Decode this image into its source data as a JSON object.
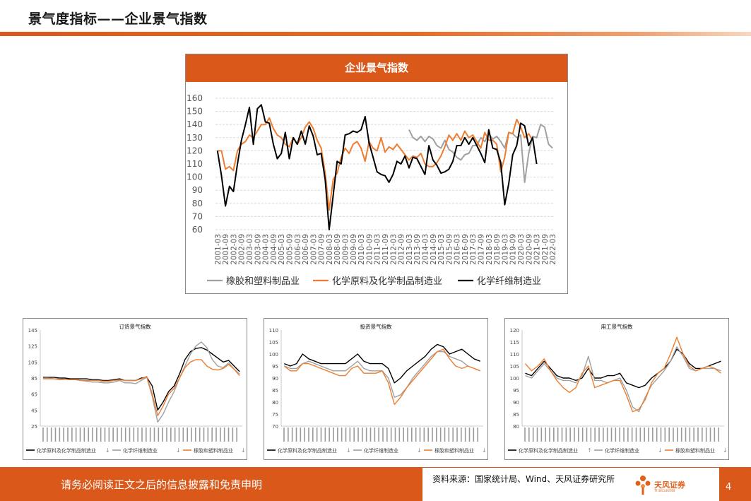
{
  "page": {
    "title": "景气度指标——企业景气指数",
    "footer": "请务必阅读正文之后的信息披露和免责申明",
    "source": "资料来源：国家统计局、Wind、天风证券研究所",
    "logo": "天风证券",
    "logo_sub": "TF SECURITIES",
    "page_number": "4",
    "accent_color": "#d9581a"
  },
  "chart_data": [
    {
      "id": "main",
      "type": "line",
      "title": "企业景气指数",
      "ylim": [
        60,
        160
      ],
      "yticks": [
        60,
        70,
        80,
        90,
        100,
        110,
        120,
        130,
        140,
        150,
        160
      ],
      "xticklabels": [
        "2001-03",
        "2001-09",
        "2002-03",
        "2002-09",
        "2003-03",
        "2003-09",
        "2004-03",
        "2004-09",
        "2005-03",
        "2005-09",
        "2006-03",
        "2006-09",
        "2007-03",
        "2007-09",
        "2008-03",
        "2008-09",
        "2009-03",
        "2009-09",
        "2010-03",
        "2010-09",
        "2011-03",
        "2011-09",
        "2012-03",
        "2012-09",
        "2013-03",
        "2013-09",
        "2014-03",
        "2014-09",
        "2015-03",
        "2015-09",
        "2016-03",
        "2016-09",
        "2017-03",
        "2017-09",
        "2018-03",
        "2018-09",
        "2019-03",
        "2019-09",
        "2020-03",
        "2020-09",
        "2021-03",
        "2021-09",
        "2022-03"
      ],
      "x_start": "2001-03",
      "x_freq": "quarterly",
      "grid": true,
      "legend": "bottom",
      "series": [
        {
          "name": "橡胶和塑料制品业",
          "color": "#a0a0a0",
          "start": "2013-03",
          "values": [
            136,
            130,
            128,
            131,
            127,
            131,
            129,
            124,
            122,
            128,
            121,
            119,
            115,
            113,
            117,
            118,
            124,
            124,
            130,
            127,
            133,
            129,
            131,
            127,
            122,
            134,
            133,
            130,
            132,
            96,
            118,
            131,
            130,
            140,
            138,
            125,
            122
          ]
        },
        {
          "name": "化学原料及化学制品制造业",
          "color": "#ed7d31",
          "start": "2001-03",
          "values": [
            120,
            120,
            106,
            108,
            105,
            120,
            125,
            127,
            132,
            130,
            135,
            140,
            140,
            145,
            137,
            132,
            130,
            125,
            123,
            130,
            125,
            130,
            138,
            142,
            137,
            128,
            122,
            103,
            75,
            98,
            103,
            115,
            122,
            118,
            125,
            127,
            122,
            112,
            127,
            122,
            120,
            130,
            119,
            123,
            121,
            125,
            121,
            117,
            113,
            116,
            115,
            118,
            110,
            108,
            108,
            111,
            116,
            123,
            132,
            128,
            133,
            128,
            135,
            130,
            132,
            127,
            122,
            134,
            128,
            128,
            125,
            104,
            115,
            134,
            133,
            144,
            138,
            130,
            133,
            128
          ]
        },
        {
          "name": "化学纤维制造业",
          "color": "#000000",
          "start": "2001-03",
          "values": [
            120,
            101,
            78,
            93,
            89,
            110,
            128,
            140,
            153,
            125,
            152,
            155,
            142,
            141,
            125,
            114,
            118,
            134,
            114,
            130,
            125,
            135,
            125,
            139,
            131,
            117,
            118,
            98,
            60,
            86,
            112,
            110,
            132,
            133,
            135,
            134,
            136,
            146,
            126,
            115,
            104,
            102,
            101,
            96,
            102,
            112,
            110,
            116,
            107,
            115,
            114,
            108,
            102,
            124,
            113,
            109,
            103,
            104,
            106,
            112,
            124,
            124,
            130,
            125,
            130,
            124,
            118,
            111,
            136,
            122,
            121,
            111,
            79,
            95,
            117,
            124,
            141,
            139,
            124,
            130,
            110
          ]
        }
      ]
    },
    {
      "id": "orders",
      "type": "line",
      "title": "订货景气指数",
      "ylim": [
        25,
        145
      ],
      "yticks": [
        25,
        45,
        65,
        85,
        105,
        125,
        145
      ],
      "legend": "bottom",
      "series": [
        {
          "name": "化学原料及化学制品制造业",
          "color": "#000000",
          "values": [
            86,
            86,
            86,
            85,
            85,
            84,
            84,
            84,
            84,
            83,
            83,
            82,
            82,
            83,
            84,
            82,
            82,
            82,
            85,
            86,
            75,
            45,
            55,
            68,
            75,
            90,
            108,
            118,
            122,
            123,
            120,
            115,
            110,
            105,
            107,
            100,
            93
          ]
        },
        {
          "name": "化学纤维制造业",
          "color": "#a0a0a0",
          "values": [
            85,
            85,
            84,
            84,
            83,
            83,
            83,
            82,
            81,
            80,
            80,
            79,
            79,
            80,
            82,
            79,
            79,
            78,
            82,
            86,
            62,
            30,
            40,
            55,
            68,
            85,
            100,
            115,
            125,
            130,
            123,
            108,
            100,
            98,
            104,
            96,
            90
          ]
        },
        {
          "name": "橡胶和塑料制品业",
          "color": "#ed7d31",
          "values": [
            84,
            84,
            84,
            83,
            83,
            83,
            83,
            82,
            82,
            82,
            82,
            81,
            81,
            82,
            83,
            82,
            82,
            82,
            84,
            87,
            65,
            38,
            50,
            65,
            72,
            85,
            98,
            105,
            108,
            108,
            100,
            96,
            95,
            97,
            102,
            96,
            88
          ]
        }
      ]
    },
    {
      "id": "investment",
      "type": "line",
      "title": "投资景气指数",
      "ylim": [
        70,
        110
      ],
      "yticks": [
        70,
        75,
        80,
        85,
        90,
        95,
        100,
        105,
        110
      ],
      "legend": "bottom",
      "series": [
        {
          "name": "化学原料及化学制品制造业",
          "color": "#000000",
          "values": [
            96,
            95,
            96,
            100,
            98,
            97,
            96,
            96,
            96,
            96,
            96,
            98,
            100,
            97,
            96,
            96,
            96,
            94,
            88,
            90,
            93,
            95,
            97,
            99,
            102,
            104,
            103,
            100,
            101,
            102,
            100,
            98,
            97
          ]
        },
        {
          "name": "化学纤维制造业",
          "color": "#a0a0a0",
          "values": [
            95,
            94,
            94,
            96,
            97,
            96,
            95,
            94,
            93,
            93,
            93,
            95,
            97,
            94,
            93,
            93,
            93,
            90,
            82,
            83,
            86,
            90,
            93,
            96,
            99,
            101,
            101,
            99,
            98,
            97,
            95,
            94,
            93
          ]
        },
        {
          "name": "橡胶和塑料制品业",
          "color": "#ed7d31",
          "values": [
            95,
            93,
            93,
            96,
            96,
            95,
            94,
            93,
            92,
            91,
            91,
            94,
            95,
            92,
            92,
            92,
            93,
            88,
            79,
            82,
            86,
            89,
            92,
            95,
            98,
            101,
            102,
            98,
            95,
            94,
            95,
            94,
            93
          ]
        }
      ]
    },
    {
      "id": "employment",
      "type": "line",
      "title": "用工景气指数",
      "ylim": [
        80,
        120
      ],
      "yticks": [
        80,
        85,
        90,
        95,
        100,
        105,
        110,
        115,
        120
      ],
      "legend": "bottom",
      "series": [
        {
          "name": "化学原料及化学制品制造业",
          "color": "#000000",
          "values": [
            102,
            101,
            104,
            107,
            104,
            101,
            100,
            100,
            99,
            100,
            104,
            100,
            100,
            101,
            101,
            102,
            98,
            97,
            96,
            97,
            100,
            102,
            104,
            107,
            112,
            110,
            106,
            104,
            104,
            105,
            106,
            107
          ]
        },
        {
          "name": "化学纤维制造业",
          "color": "#a0a0a0",
          "values": [
            101,
            100,
            103,
            106,
            103,
            100,
            99,
            99,
            98,
            101,
            109,
            99,
            99,
            98,
            99,
            100,
            95,
            88,
            86,
            92,
            97,
            100,
            103,
            107,
            113,
            109,
            104,
            103,
            104,
            104,
            104,
            103
          ]
        },
        {
          "name": "橡胶和塑料制品业",
          "color": "#ed7d31",
          "values": [
            106,
            103,
            105,
            108,
            103,
            99,
            96,
            94,
            96,
            102,
            105,
            96,
            97,
            98,
            99,
            99,
            93,
            86,
            87,
            91,
            98,
            102,
            104,
            110,
            117,
            110,
            105,
            103,
            104,
            105,
            104,
            102
          ]
        }
      ]
    }
  ]
}
